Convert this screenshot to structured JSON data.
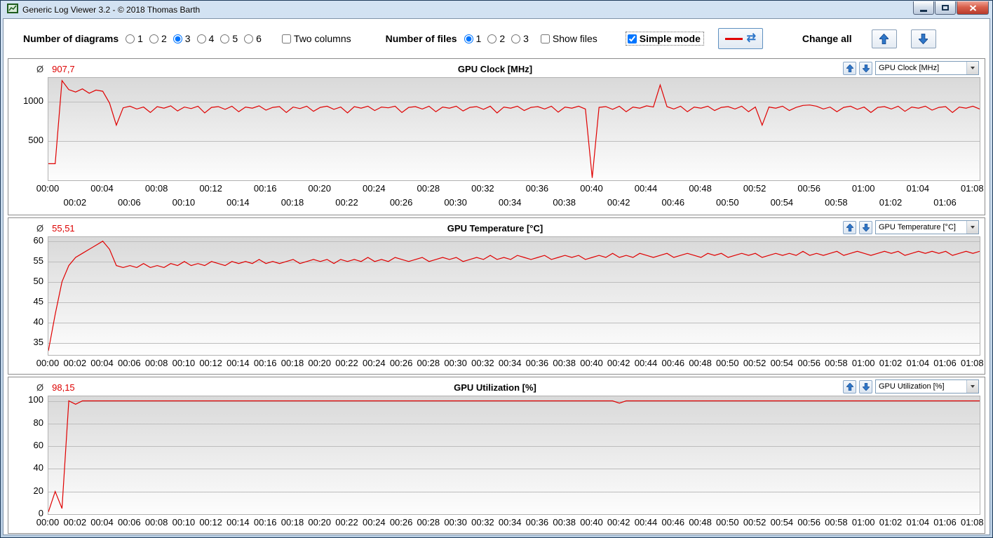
{
  "window": {
    "title": "Generic Log Viewer 3.2 - © 2018 Thomas Barth"
  },
  "toolbar": {
    "diagrams_label": "Number of diagrams",
    "diagram_options": [
      "1",
      "2",
      "3",
      "4",
      "5",
      "6"
    ],
    "diagrams_selected": "3",
    "two_columns_label": "Two columns",
    "two_columns_checked": false,
    "files_label": "Number of files",
    "file_options": [
      "1",
      "2",
      "3"
    ],
    "files_selected": "1",
    "show_files_label": "Show files",
    "show_files_checked": false,
    "simple_mode_label": "Simple mode",
    "simple_mode_checked": true,
    "refresh_glyph": "⇄",
    "change_all_label": "Change all"
  },
  "panels": [
    {
      "avg_symbol": "Ø",
      "avg_value": "907,7",
      "title": "GPU Clock [MHz]",
      "dropdown_value": "GPU Clock [MHz]"
    },
    {
      "avg_symbol": "Ø",
      "avg_value": "55,51",
      "title": "GPU Temperature [°C]",
      "dropdown_value": "GPU Temperature [°C]"
    },
    {
      "avg_symbol": "Ø",
      "avg_value": "98,15",
      "title": "GPU Utilization [%]",
      "dropdown_value": "GPU Utilization [%]"
    }
  ],
  "chart_data": [
    {
      "type": "line",
      "title": "GPU Clock [MHz]",
      "color": "#e00000",
      "average": 907.7,
      "x_step": 0.5,
      "xmax": 68.5,
      "ylim": [
        0,
        1300
      ],
      "y_ticks": [
        500,
        1000
      ],
      "stagger": true,
      "x_tick_minutes": [
        0,
        2,
        4,
        6,
        8,
        10,
        12,
        14,
        16,
        18,
        20,
        22,
        24,
        26,
        28,
        30,
        32,
        34,
        36,
        38,
        40,
        42,
        44,
        46,
        48,
        50,
        52,
        54,
        56,
        58,
        60,
        62,
        64,
        66,
        68
      ],
      "x_tick_labels": [
        "00:00",
        "00:02",
        "00:04",
        "00:06",
        "00:08",
        "00:10",
        "00:12",
        "00:14",
        "00:16",
        "00:18",
        "00:20",
        "00:22",
        "00:24",
        "00:26",
        "00:28",
        "00:30",
        "00:32",
        "00:34",
        "00:36",
        "00:38",
        "00:40",
        "00:42",
        "00:44",
        "00:46",
        "00:48",
        "00:50",
        "00:52",
        "00:54",
        "00:56",
        "00:58",
        "01:00",
        "01:02",
        "01:04",
        "01:06",
        "01:08"
      ],
      "values": [
        210,
        210,
        1265,
        1150,
        1120,
        1160,
        1105,
        1145,
        1130,
        980,
        700,
        920,
        940,
        905,
        930,
        860,
        935,
        915,
        945,
        880,
        930,
        910,
        940,
        855,
        925,
        935,
        900,
        940,
        870,
        930,
        915,
        945,
        890,
        925,
        935,
        860,
        930,
        910,
        940,
        875,
        925,
        940,
        900,
        930,
        855,
        935,
        915,
        940,
        885,
        930,
        920,
        940,
        860,
        925,
        935,
        905,
        940,
        870,
        930,
        915,
        940,
        880,
        925,
        935,
        900,
        940,
        855,
        930,
        915,
        940,
        885,
        925,
        935,
        905,
        940,
        865,
        930,
        915,
        940,
        905,
        30,
        925,
        935,
        900,
        940,
        870,
        930,
        915,
        945,
        930,
        1210,
        935,
        905,
        940,
        870,
        930,
        915,
        940,
        885,
        925,
        935,
        905,
        940,
        870,
        930,
        700,
        930,
        915,
        940,
        885,
        925,
        950,
        955,
        940,
        905,
        930,
        870,
        925,
        940,
        900,
        930,
        860,
        925,
        935,
        905,
        940,
        875,
        930,
        915,
        940,
        890,
        925,
        935,
        860,
        930,
        915,
        940,
        905
      ]
    },
    {
      "type": "line",
      "title": "GPU Temperature [°C]",
      "color": "#e00000",
      "average": 55.51,
      "x_step": 0.5,
      "xmax": 68.5,
      "ylim": [
        32,
        61
      ],
      "y_ticks": [
        35,
        40,
        45,
        50,
        55,
        60
      ],
      "stagger": false,
      "x_tick_minutes": [
        0,
        2,
        4,
        6,
        8,
        10,
        12,
        14,
        16,
        18,
        20,
        22,
        24,
        26,
        28,
        30,
        32,
        34,
        36,
        38,
        40,
        42,
        44,
        46,
        48,
        50,
        52,
        54,
        56,
        58,
        60,
        62,
        64,
        66,
        68
      ],
      "x_tick_labels": [
        "00:00",
        "00:02",
        "00:04",
        "00:06",
        "00:08",
        "00:10",
        "00:12",
        "00:14",
        "00:16",
        "00:18",
        "00:20",
        "00:22",
        "00:24",
        "00:26",
        "00:28",
        "00:30",
        "00:32",
        "00:34",
        "00:36",
        "00:38",
        "00:40",
        "00:42",
        "00:44",
        "00:46",
        "00:48",
        "00:50",
        "00:52",
        "00:54",
        "00:56",
        "00:58",
        "01:00",
        "01:02",
        "01:04",
        "01:06",
        "01:08"
      ],
      "values": [
        33,
        42,
        50,
        54,
        56,
        57,
        58,
        59,
        60,
        58,
        54,
        53.5,
        54,
        53.5,
        54.5,
        53.5,
        54,
        53.5,
        54.5,
        54,
        55,
        54,
        54.5,
        54,
        55,
        54.5,
        54,
        55,
        54.5,
        55,
        54.5,
        55.5,
        54.5,
        55,
        54.5,
        55,
        55.5,
        54.5,
        55,
        55.5,
        55,
        55.5,
        54.5,
        55.5,
        55,
        55.5,
        55,
        56,
        55,
        55.5,
        55,
        56,
        55.5,
        55,
        55.5,
        56,
        55,
        55.5,
        56,
        55.5,
        56,
        55,
        55.5,
        56,
        55.5,
        56.5,
        55.5,
        56,
        55.5,
        56.5,
        56,
        55.5,
        56,
        56.5,
        55.5,
        56,
        56.5,
        56,
        56.5,
        55.5,
        56,
        56.5,
        56,
        57,
        56,
        56.5,
        56,
        57,
        56.5,
        56,
        56.5,
        57,
        56,
        56.5,
        57,
        56.5,
        56,
        57,
        56.5,
        57,
        56,
        56.5,
        57,
        56.5,
        57,
        56,
        56.5,
        57,
        56.5,
        57,
        56.5,
        57.5,
        56.5,
        57,
        56.5,
        57,
        57.5,
        56.5,
        57,
        57.5,
        57,
        56.5,
        57,
        57.5,
        57,
        57.5,
        56.5,
        57,
        57.5,
        57,
        57.5,
        57,
        57.5,
        56.5,
        57,
        57.5,
        57,
        57.5
      ]
    },
    {
      "type": "line",
      "title": "GPU Utilization [%]",
      "color": "#e00000",
      "average": 98.15,
      "x_step": 0.5,
      "xmax": 68.5,
      "ylim": [
        0,
        104
      ],
      "y_ticks": [
        0,
        20,
        40,
        60,
        80,
        100
      ],
      "stagger": false,
      "x_tick_minutes": [
        0,
        2,
        4,
        6,
        8,
        10,
        12,
        14,
        16,
        18,
        20,
        22,
        24,
        26,
        28,
        30,
        32,
        34,
        36,
        38,
        40,
        42,
        44,
        46,
        48,
        50,
        52,
        54,
        56,
        58,
        60,
        62,
        64,
        66,
        68
      ],
      "x_tick_labels": [
        "00:00",
        "00:02",
        "00:04",
        "00:06",
        "00:08",
        "00:10",
        "00:12",
        "00:14",
        "00:16",
        "00:18",
        "00:20",
        "00:22",
        "00:24",
        "00:26",
        "00:28",
        "00:30",
        "00:32",
        "00:34",
        "00:36",
        "00:38",
        "00:40",
        "00:42",
        "00:44",
        "00:46",
        "00:48",
        "00:50",
        "00:52",
        "00:54",
        "00:56",
        "00:58",
        "01:00",
        "01:02",
        "01:04",
        "01:06",
        "01:08"
      ],
      "values": [
        2,
        20,
        5,
        100,
        97,
        100,
        100,
        100,
        100,
        100,
        100,
        100,
        100,
        100,
        100,
        100,
        100,
        100,
        100,
        100,
        100,
        100,
        100,
        100,
        100,
        100,
        100,
        100,
        100,
        100,
        100,
        100,
        100,
        100,
        100,
        100,
        100,
        100,
        100,
        100,
        100,
        100,
        100,
        100,
        100,
        100,
        100,
        100,
        100,
        100,
        100,
        100,
        100,
        100,
        100,
        100,
        100,
        100,
        100,
        100,
        100,
        100,
        100,
        100,
        100,
        100,
        100,
        100,
        100,
        100,
        100,
        100,
        100,
        100,
        100,
        100,
        100,
        100,
        100,
        100,
        100,
        100,
        100,
        100,
        98,
        100,
        100,
        100,
        100,
        100,
        100,
        100,
        100,
        100,
        100,
        100,
        100,
        100,
        100,
        100,
        100,
        100,
        100,
        100,
        100,
        100,
        100,
        100,
        100,
        100,
        100,
        100,
        100,
        100,
        100,
        100,
        100,
        100,
        100,
        100,
        100,
        100,
        100,
        100,
        100,
        100,
        100,
        100,
        100,
        100,
        100,
        100,
        100,
        100,
        100,
        100,
        100,
        100
      ]
    }
  ]
}
